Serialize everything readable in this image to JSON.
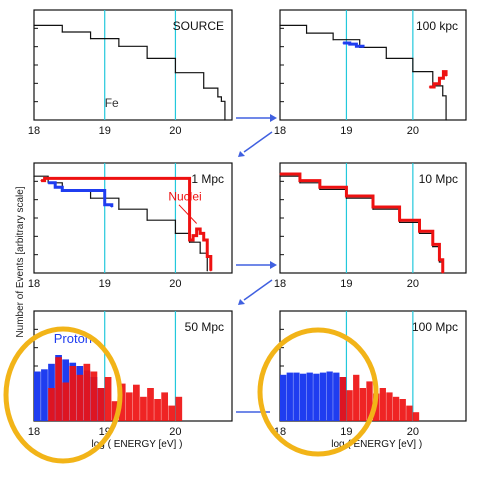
{
  "colors": {
    "frame": "#111111",
    "gridline": "#22c8dc",
    "total_hist": "#111111",
    "proton": "#1f3df0",
    "nuclei": "#ee1111",
    "arrow": "#4060e0",
    "highlight": "#f2b418"
  },
  "shared_ylabel": "Number of Events  [arbitrary scale]",
  "chart_data": [
    {
      "type": "line",
      "title": "SOURCE",
      "xlim": [
        18,
        20.8
      ],
      "ylim": [
        0,
        1
      ],
      "xticks": [
        "18",
        "19",
        "20"
      ],
      "gridlines_x": [
        19,
        20
      ],
      "series": [
        {
          "role": "total",
          "x": [
            18.0,
            18.4,
            18.8,
            19.2,
            19.6,
            20.0,
            20.4,
            20.6,
            20.65,
            20.7
          ],
          "y": [
            0.86,
            0.8,
            0.74,
            0.67,
            0.56,
            0.43,
            0.29,
            0.21,
            0.17,
            0.0
          ]
        }
      ],
      "annotations": [
        {
          "text": "Fe",
          "x": 19.0,
          "y": 0.12,
          "color": "#333333"
        }
      ]
    },
    {
      "type": "line",
      "title": "100 kpc",
      "xlim": [
        18,
        20.8
      ],
      "ylim": [
        0,
        1
      ],
      "xticks": [
        "18",
        "19",
        "20"
      ],
      "gridlines_x": [
        19,
        20
      ],
      "series": [
        {
          "role": "total",
          "x": [
            18.0,
            18.4,
            18.8,
            19.2,
            19.6,
            20.0,
            20.3,
            20.45,
            20.5
          ],
          "y": [
            0.86,
            0.79,
            0.73,
            0.66,
            0.56,
            0.44,
            0.31,
            0.22,
            0.0
          ]
        },
        {
          "role": "proton",
          "x": [
            18.95,
            19.05,
            19.15,
            19.25
          ],
          "y": [
            0.7,
            0.69,
            0.67,
            0.66
          ]
        },
        {
          "role": "nuclei",
          "x": [
            20.25,
            20.32,
            20.4,
            20.46,
            20.5
          ],
          "y": [
            0.3,
            0.33,
            0.38,
            0.44,
            0.4
          ]
        }
      ],
      "annotations": []
    },
    {
      "type": "line",
      "title": "1 Mpc",
      "xlim": [
        18,
        20.8
      ],
      "ylim": [
        0,
        1
      ],
      "xticks": [
        "18",
        "19",
        "20"
      ],
      "gridlines_x": [
        19,
        20
      ],
      "series": [
        {
          "role": "total",
          "x": [
            18.0,
            18.2,
            18.4,
            18.8,
            19.2,
            19.6,
            20.0,
            20.2,
            20.35,
            20.45
          ],
          "y": [
            0.88,
            0.82,
            0.75,
            0.68,
            0.58,
            0.48,
            0.36,
            0.28,
            0.18,
            0.02
          ]
        },
        {
          "role": "proton",
          "x": [
            18.2,
            18.3,
            18.4,
            19.0,
            19.1
          ],
          "y": [
            0.82,
            0.78,
            0.75,
            0.62,
            0.6
          ]
        },
        {
          "role": "nuclei",
          "x": [
            18.1,
            18.15,
            20.2,
            20.25,
            20.3,
            20.35,
            20.4,
            20.45,
            20.5
          ],
          "y": [
            0.84,
            0.86,
            0.3,
            0.34,
            0.4,
            0.36,
            0.3,
            0.15,
            0.02
          ]
        }
      ],
      "annotations": [
        {
          "text": "Nuclei",
          "x": 19.9,
          "y": 0.66,
          "color": "#ee1111"
        }
      ]
    },
    {
      "type": "line",
      "title": "10 Mpc",
      "xlim": [
        18,
        20.8
      ],
      "ylim": [
        0,
        1
      ],
      "xticks": [
        "18",
        "19",
        "20"
      ],
      "gridlines_x": [
        19,
        20
      ],
      "series": [
        {
          "role": "total",
          "x": [
            18.0,
            18.3,
            18.6,
            19.0,
            19.4,
            19.8,
            20.1,
            20.3,
            20.4,
            20.45
          ],
          "y": [
            0.88,
            0.82,
            0.76,
            0.68,
            0.58,
            0.46,
            0.36,
            0.24,
            0.1,
            0.0
          ]
        },
        {
          "role": "nuclei",
          "x": [
            18.0,
            18.3,
            18.6,
            19.0,
            19.4,
            19.8,
            20.1,
            20.3,
            20.4,
            20.45
          ],
          "y": [
            0.9,
            0.84,
            0.78,
            0.7,
            0.6,
            0.48,
            0.38,
            0.26,
            0.12,
            0.0
          ]
        }
      ],
      "annotations": []
    },
    {
      "type": "bar",
      "title": "50 Mpc",
      "xlim": [
        18,
        20.8
      ],
      "ylim": [
        0,
        1
      ],
      "xticks": [
        "18",
        "19",
        "20"
      ],
      "xlabel": "log ( ENERGY  [eV] )",
      "gridlines_x": [
        19,
        20
      ],
      "series": [
        {
          "role": "proton",
          "name": "Proton",
          "x": [
            18.0,
            18.1,
            18.2,
            18.3,
            18.4,
            18.5,
            18.6,
            18.7,
            18.8,
            18.9
          ],
          "y": [
            0.45,
            0.47,
            0.52,
            0.6,
            0.56,
            0.53,
            0.5,
            0.46,
            0.4,
            0.3
          ]
        },
        {
          "role": "nuclei",
          "x": [
            18.2,
            18.3,
            18.4,
            18.5,
            18.6,
            18.7,
            18.8,
            18.9,
            19.0,
            19.1,
            19.2,
            19.3,
            19.4,
            19.5,
            19.6,
            19.7,
            19.8,
            19.9,
            20.0
          ],
          "y": [
            0.3,
            0.58,
            0.35,
            0.5,
            0.42,
            0.52,
            0.45,
            0.3,
            0.4,
            0.18,
            0.34,
            0.26,
            0.33,
            0.22,
            0.3,
            0.2,
            0.26,
            0.14,
            0.22
          ]
        }
      ],
      "annotations": []
    },
    {
      "type": "bar",
      "title": "100 Mpc",
      "xlim": [
        18,
        20.8
      ],
      "ylim": [
        0,
        1
      ],
      "xticks": [
        "18",
        "19",
        "20"
      ],
      "xlabel": "log ( ENERGY  [eV] )",
      "gridlines_x": [
        19,
        20
      ],
      "series": [
        {
          "role": "proton",
          "x": [
            18.0,
            18.1,
            18.2,
            18.3,
            18.4,
            18.5,
            18.6,
            18.7,
            18.8,
            18.9
          ],
          "y": [
            0.42,
            0.44,
            0.44,
            0.43,
            0.44,
            0.43,
            0.44,
            0.45,
            0.44,
            0.4
          ]
        },
        {
          "role": "nuclei",
          "x": [
            18.9,
            19.0,
            19.1,
            19.2,
            19.3,
            19.4,
            19.5,
            19.6,
            19.7,
            19.8,
            19.9,
            20.0
          ],
          "y": [
            0.4,
            0.28,
            0.42,
            0.3,
            0.36,
            0.25,
            0.3,
            0.26,
            0.22,
            0.2,
            0.14,
            0.08
          ]
        }
      ],
      "annotations": []
    }
  ]
}
